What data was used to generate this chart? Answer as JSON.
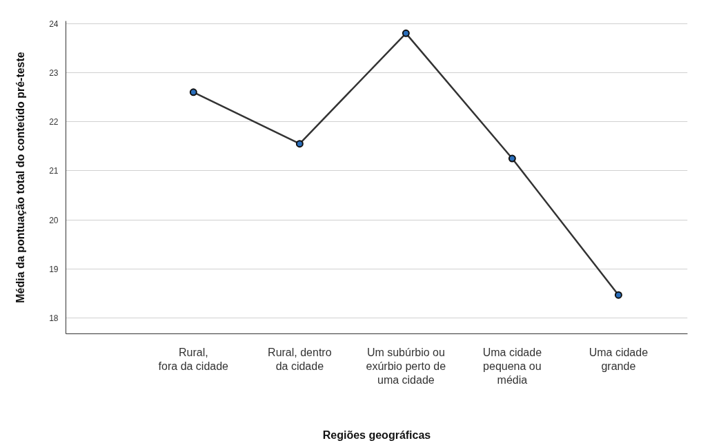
{
  "chart_data": {
    "type": "line",
    "xlabel": "Regiões geográficas",
    "ylabel": "Média da pontuação total do conteúdo pré-teste",
    "categories": [
      "Rural,\nfora da cidade",
      "Rural, dentro\nda cidade",
      "Um subúrbio ou\nexúrbio perto de\numa cidade",
      "Uma cidade\npequena ou\nmédia",
      "Uma cidade\ngrande"
    ],
    "series": [
      {
        "color": "#333333",
        "values": [
          22.6,
          21.55,
          23.8,
          21.25,
          18.47
        ]
      }
    ],
    "ylim": [
      17.68,
      24.05
    ],
    "yticks": [
      18,
      19,
      20,
      21,
      22,
      23,
      24
    ],
    "grid": "y",
    "marker": "circle",
    "line_style": "solid"
  }
}
